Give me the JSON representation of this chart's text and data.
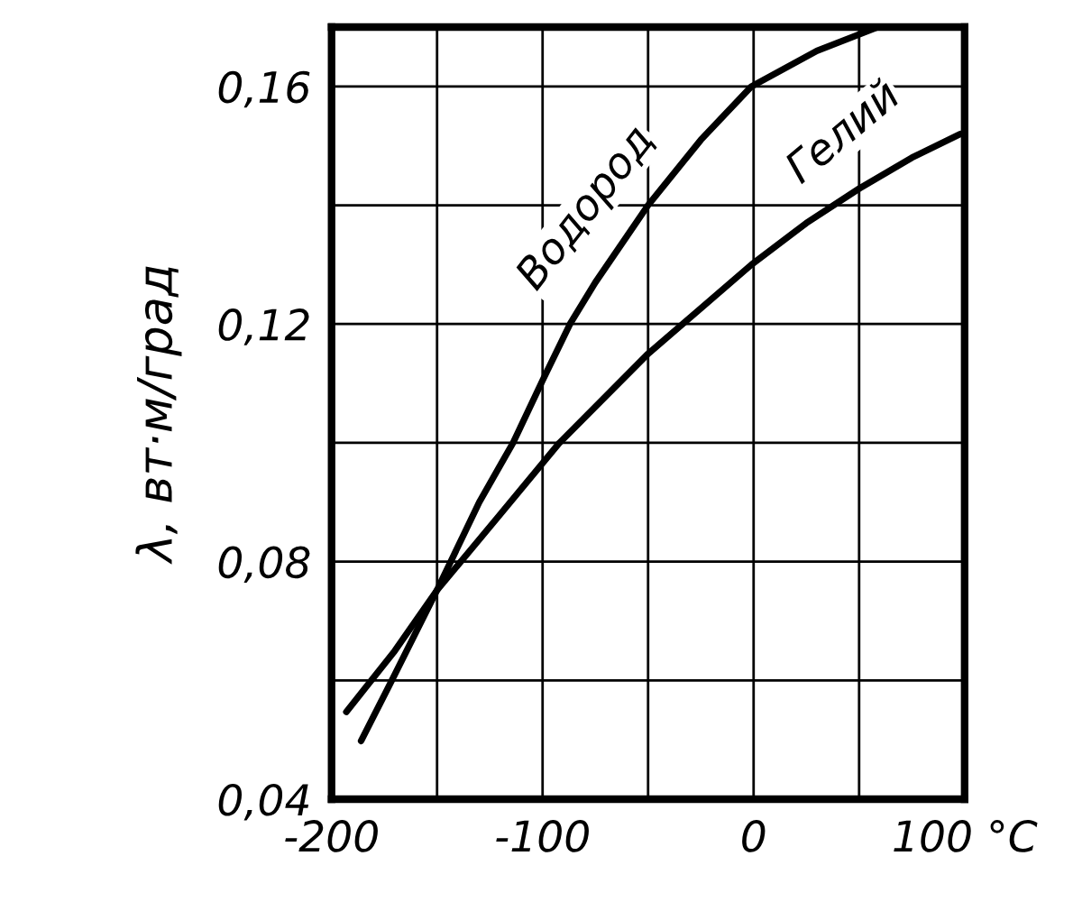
{
  "chart_data": {
    "type": "line",
    "ylabel": "λ, вт·м/град",
    "xlim": [
      -200,
      100
    ],
    "xticks": [
      -200,
      {
        "value": -150,
        "label": null
      },
      -100,
      {
        "value": -50,
        "label": null
      },
      0,
      {
        "value": 50,
        "label": null
      },
      {
        "value": 100,
        "label": "100 °C"
      }
    ],
    "ylim": [
      0.04,
      0.17
    ],
    "yticks": [
      {
        "value": 0.04,
        "label": "0,04"
      },
      {
        "value": 0.06,
        "label": null
      },
      {
        "value": 0.08,
        "label": "0,08"
      },
      {
        "value": 0.1,
        "label": null
      },
      {
        "value": 0.12,
        "label": "0,12"
      },
      {
        "value": 0.14,
        "label": null
      },
      {
        "value": 0.16,
        "label": "0,16"
      }
    ],
    "grid": true,
    "legend": false,
    "series": [
      {
        "name": "Водород",
        "color": "#000000",
        "x": [
          -186,
          -170,
          -150,
          -130,
          -114,
          -100,
          -87,
          -75,
          -50,
          -25,
          -1,
          30,
          59
        ],
        "values": [
          0.0498,
          0.061,
          0.0752,
          0.09,
          0.1,
          0.1105,
          0.12,
          0.127,
          0.14,
          0.151,
          0.16,
          0.166,
          0.17
        ]
      },
      {
        "name": "Гелий",
        "color": "#000000",
        "x": [
          -193,
          -170,
          -150,
          -120,
          -92,
          -50,
          -1,
          25,
          50,
          75,
          98
        ],
        "values": [
          0.0547,
          0.065,
          0.0752,
          0.088,
          0.1,
          0.115,
          0.13,
          0.137,
          0.1428,
          0.148,
          0.152
        ]
      }
    ]
  }
}
